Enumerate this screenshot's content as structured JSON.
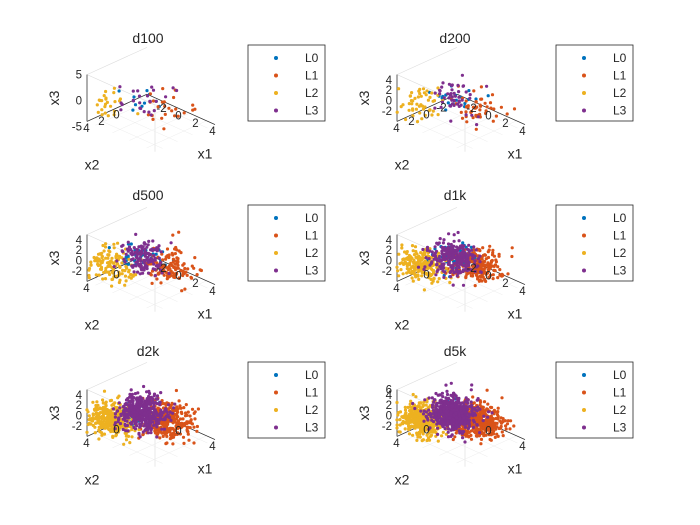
{
  "figure": {
    "legend_labels": [
      "L0",
      "L1",
      "L2",
      "L3"
    ],
    "legend_colors": [
      "#0072BD",
      "#D95319",
      "#EDB120",
      "#7E2F8E"
    ],
    "axis_labels": {
      "x1": "x1",
      "x2": "x2",
      "x3": "x3"
    }
  },
  "chart_data": [
    {
      "type": "scatter",
      "title": "d100",
      "xlabel": "x1",
      "ylabel": "x2",
      "zlabel": "x3",
      "xticks": [
        "-2",
        "0",
        "2",
        "4"
      ],
      "yticks": [
        "0",
        "2",
        "4"
      ],
      "zticks": [
        "-5",
        "0",
        "5"
      ],
      "legend_location": "right",
      "grid": true,
      "series": [
        {
          "name": "L0",
          "color": "#0072BD",
          "approx_points": 10,
          "center": [
            1.0,
            2.0,
            1.5
          ]
        },
        {
          "name": "L1",
          "color": "#D95319",
          "approx_points": 25,
          "center": [
            2.5,
            0.5,
            0.0
          ]
        },
        {
          "name": "L2",
          "color": "#EDB120",
          "approx_points": 25,
          "center": [
            -1.5,
            3.5,
            -0.5
          ]
        },
        {
          "name": "L3",
          "color": "#7E2F8E",
          "approx_points": 25,
          "center": [
            0.5,
            1.5,
            0.5
          ]
        }
      ]
    },
    {
      "type": "scatter",
      "title": "d200",
      "xlabel": "x1",
      "ylabel": "x2",
      "zlabel": "x3",
      "xticks": [
        "-2",
        "0",
        "2",
        "4"
      ],
      "yticks": [
        "-2",
        "0",
        "2",
        "4"
      ],
      "zticks": [
        "-2",
        "0",
        "2",
        "4"
      ],
      "legend_location": "right",
      "grid": true,
      "series": [
        {
          "name": "L0",
          "color": "#0072BD",
          "approx_points": 20,
          "center": [
            1.0,
            2.0,
            1.5
          ]
        },
        {
          "name": "L1",
          "color": "#D95319",
          "approx_points": 50,
          "center": [
            2.5,
            0.5,
            0.0
          ]
        },
        {
          "name": "L2",
          "color": "#EDB120",
          "approx_points": 50,
          "center": [
            -1.5,
            3.5,
            -0.5
          ]
        },
        {
          "name": "L3",
          "color": "#7E2F8E",
          "approx_points": 50,
          "center": [
            0.5,
            1.5,
            0.5
          ]
        }
      ]
    },
    {
      "type": "scatter",
      "title": "d500",
      "xlabel": "x1",
      "ylabel": "x2",
      "zlabel": "x3",
      "xticks": [
        "-2",
        "0",
        "2",
        "4"
      ],
      "yticks": [
        "0",
        "4"
      ],
      "zticks": [
        "-2",
        "0",
        "2",
        "4"
      ],
      "legend_location": "right",
      "grid": true,
      "series": [
        {
          "name": "L0",
          "color": "#0072BD",
          "approx_points": 40,
          "center": [
            1.0,
            2.0,
            1.5
          ]
        },
        {
          "name": "L1",
          "color": "#D95319",
          "approx_points": 130,
          "center": [
            2.5,
            0.5,
            0.0
          ]
        },
        {
          "name": "L2",
          "color": "#EDB120",
          "approx_points": 130,
          "center": [
            -1.5,
            3.5,
            -0.5
          ]
        },
        {
          "name": "L3",
          "color": "#7E2F8E",
          "approx_points": 130,
          "center": [
            0.5,
            1.5,
            0.8
          ]
        }
      ]
    },
    {
      "type": "scatter",
      "title": "d1k",
      "xlabel": "x1",
      "ylabel": "x2",
      "zlabel": "x3",
      "xticks": [
        "-2",
        "0",
        "2",
        "4"
      ],
      "yticks": [
        "0",
        "4"
      ],
      "zticks": [
        "-2",
        "0",
        "2",
        "4"
      ],
      "legend_location": "right",
      "grid": true,
      "series": [
        {
          "name": "L0",
          "color": "#0072BD",
          "approx_points": 60,
          "center": [
            1.0,
            2.0,
            1.5
          ]
        },
        {
          "name": "L1",
          "color": "#D95319",
          "approx_points": 220,
          "center": [
            2.5,
            0.5,
            0.0
          ]
        },
        {
          "name": "L2",
          "color": "#EDB120",
          "approx_points": 220,
          "center": [
            -1.5,
            3.5,
            -0.5
          ]
        },
        {
          "name": "L3",
          "color": "#7E2F8E",
          "approx_points": 260,
          "center": [
            0.5,
            1.5,
            0.8
          ]
        }
      ]
    },
    {
      "type": "scatter",
      "title": "d2k",
      "xlabel": "x1",
      "ylabel": "x2",
      "zlabel": "x3",
      "xticks": [
        "0",
        "4"
      ],
      "yticks": [
        "0",
        "4"
      ],
      "zticks": [
        "-2",
        "0",
        "2",
        "4"
      ],
      "legend_location": "right",
      "grid": true,
      "series": [
        {
          "name": "L0",
          "color": "#0072BD",
          "approx_points": 40,
          "center": [
            1.0,
            2.0,
            1.5
          ]
        },
        {
          "name": "L1",
          "color": "#D95319",
          "approx_points": 330,
          "center": [
            2.5,
            0.5,
            0.0
          ]
        },
        {
          "name": "L2",
          "color": "#EDB120",
          "approx_points": 330,
          "center": [
            -1.5,
            3.5,
            -0.5
          ]
        },
        {
          "name": "L3",
          "color": "#7E2F8E",
          "approx_points": 420,
          "center": [
            0.5,
            1.5,
            0.8
          ]
        }
      ]
    },
    {
      "type": "scatter",
      "title": "d5k",
      "xlabel": "x1",
      "ylabel": "x2",
      "zlabel": "x3",
      "xticks": [
        "0",
        "4"
      ],
      "yticks": [
        "0",
        "4"
      ],
      "zticks": [
        "-2",
        "0",
        "2",
        "4",
        "6"
      ],
      "legend_location": "right",
      "grid": true,
      "series": [
        {
          "name": "L0",
          "color": "#0072BD",
          "approx_points": 30,
          "center": [
            1.0,
            2.0,
            1.5
          ]
        },
        {
          "name": "L1",
          "color": "#D95319",
          "approx_points": 420,
          "center": [
            2.5,
            0.5,
            0.0
          ]
        },
        {
          "name": "L2",
          "color": "#EDB120",
          "approx_points": 420,
          "center": [
            -1.5,
            3.5,
            -0.5
          ]
        },
        {
          "name": "L3",
          "color": "#7E2F8E",
          "approx_points": 560,
          "center": [
            0.5,
            1.5,
            0.8
          ]
        }
      ]
    }
  ]
}
